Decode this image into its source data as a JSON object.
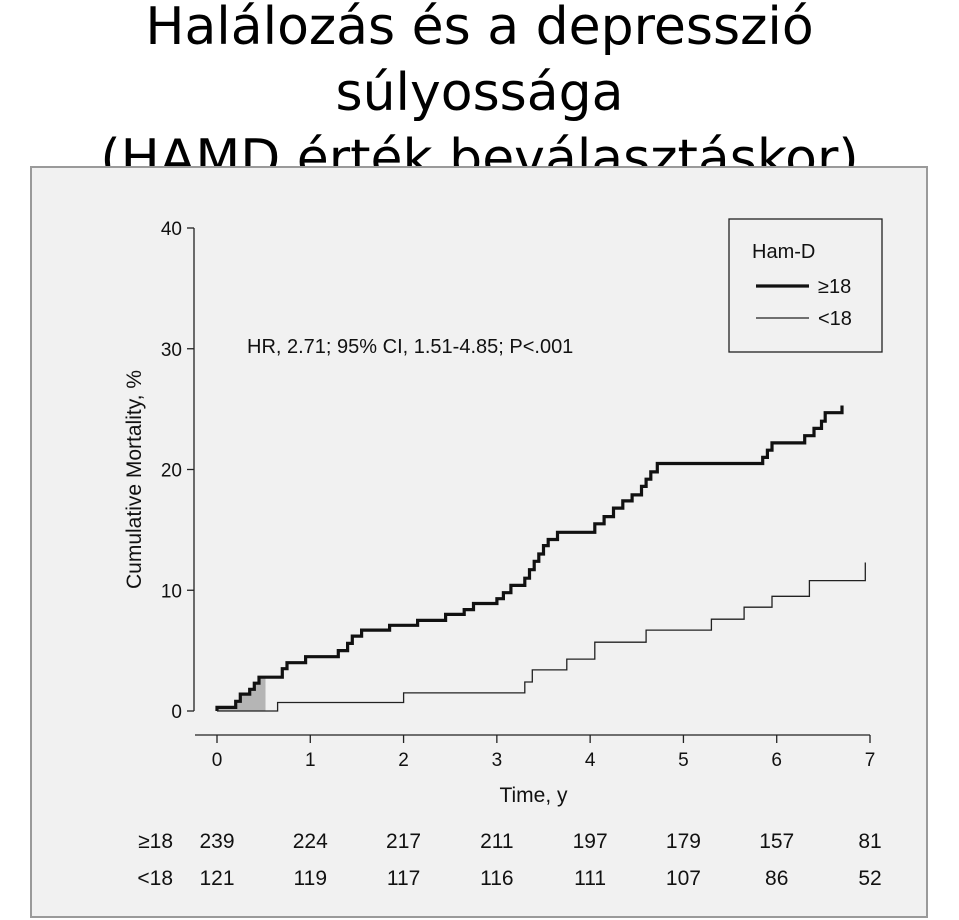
{
  "slide": {
    "title_line1": "Halálozás és a depresszió súlyossága",
    "title_line2": "(HAMD érték beválasztáskor)"
  },
  "chart_data": {
    "type": "line",
    "step": true,
    "xlabel": "Time, y",
    "ylabel": "Cumulative Mortality, %",
    "xlim": [
      0,
      7
    ],
    "ylim": [
      0,
      40
    ],
    "x_ticks": [
      "0",
      "1",
      "2",
      "3",
      "4",
      "5",
      "6",
      "7"
    ],
    "y_ticks": [
      "0",
      "10",
      "20",
      "30",
      "40"
    ],
    "grid": false,
    "legend_title": "Ham-D",
    "legend_position": "top-right",
    "annotation": "HR, 2.71; 95% CI, 1.51-4.85; P<.001",
    "series": [
      {
        "name": "≥18",
        "style": "thick",
        "color": "#111111",
        "points": [
          [
            0,
            0
          ],
          [
            0,
            0.3
          ],
          [
            0.2,
            0.3
          ],
          [
            0.2,
            0.8
          ],
          [
            0.25,
            0.8
          ],
          [
            0.25,
            1.4
          ],
          [
            0.35,
            1.4
          ],
          [
            0.35,
            1.8
          ],
          [
            0.4,
            1.8
          ],
          [
            0.4,
            2.3
          ],
          [
            0.45,
            2.3
          ],
          [
            0.45,
            2.8
          ],
          [
            0.7,
            2.8
          ],
          [
            0.7,
            3.5
          ],
          [
            0.75,
            3.5
          ],
          [
            0.75,
            4.0
          ],
          [
            0.95,
            4.0
          ],
          [
            0.95,
            4.5
          ],
          [
            1.3,
            4.5
          ],
          [
            1.3,
            5.0
          ],
          [
            1.4,
            5.0
          ],
          [
            1.4,
            5.6
          ],
          [
            1.45,
            5.6
          ],
          [
            1.45,
            6.2
          ],
          [
            1.55,
            6.2
          ],
          [
            1.55,
            6.7
          ],
          [
            1.85,
            6.7
          ],
          [
            1.85,
            7.1
          ],
          [
            2.15,
            7.1
          ],
          [
            2.15,
            7.5
          ],
          [
            2.45,
            7.5
          ],
          [
            2.45,
            8.0
          ],
          [
            2.65,
            8.0
          ],
          [
            2.65,
            8.4
          ],
          [
            2.75,
            8.4
          ],
          [
            2.75,
            8.9
          ],
          [
            3.0,
            8.9
          ],
          [
            3.0,
            9.3
          ],
          [
            3.07,
            9.3
          ],
          [
            3.07,
            9.8
          ],
          [
            3.15,
            9.8
          ],
          [
            3.15,
            10.4
          ],
          [
            3.3,
            10.4
          ],
          [
            3.3,
            11.0
          ],
          [
            3.35,
            11.0
          ],
          [
            3.35,
            11.7
          ],
          [
            3.4,
            11.7
          ],
          [
            3.4,
            12.4
          ],
          [
            3.45,
            12.4
          ],
          [
            3.45,
            13.0
          ],
          [
            3.5,
            13.0
          ],
          [
            3.5,
            13.7
          ],
          [
            3.55,
            13.7
          ],
          [
            3.55,
            14.2
          ],
          [
            3.65,
            14.2
          ],
          [
            3.65,
            14.8
          ],
          [
            4.05,
            14.8
          ],
          [
            4.05,
            15.5
          ],
          [
            4.15,
            15.5
          ],
          [
            4.15,
            16.1
          ],
          [
            4.25,
            16.1
          ],
          [
            4.25,
            16.8
          ],
          [
            4.35,
            16.8
          ],
          [
            4.35,
            17.4
          ],
          [
            4.45,
            17.4
          ],
          [
            4.45,
            17.9
          ],
          [
            4.55,
            17.9
          ],
          [
            4.55,
            18.6
          ],
          [
            4.6,
            18.6
          ],
          [
            4.6,
            19.2
          ],
          [
            4.65,
            19.2
          ],
          [
            4.65,
            19.8
          ],
          [
            4.72,
            19.8
          ],
          [
            4.72,
            20.5
          ],
          [
            5.85,
            20.5
          ],
          [
            5.85,
            21.0
          ],
          [
            5.9,
            21.0
          ],
          [
            5.9,
            21.6
          ],
          [
            5.95,
            21.6
          ],
          [
            5.95,
            22.2
          ],
          [
            6.3,
            22.2
          ],
          [
            6.3,
            22.8
          ],
          [
            6.4,
            22.8
          ],
          [
            6.4,
            23.4
          ],
          [
            6.48,
            23.4
          ],
          [
            6.48,
            24.0
          ],
          [
            6.52,
            24.0
          ],
          [
            6.52,
            24.7
          ],
          [
            6.7,
            24.7
          ],
          [
            6.7,
            25.3
          ]
        ]
      },
      {
        "name": "<18",
        "style": "thin",
        "color": "#222222",
        "points": [
          [
            0,
            0
          ],
          [
            0.65,
            0
          ],
          [
            0.65,
            0.7
          ],
          [
            2.0,
            0.7
          ],
          [
            2.0,
            1.5
          ],
          [
            3.3,
            1.5
          ],
          [
            3.3,
            2.4
          ],
          [
            3.38,
            2.4
          ],
          [
            3.38,
            3.4
          ],
          [
            3.75,
            3.4
          ],
          [
            3.75,
            4.3
          ],
          [
            4.05,
            4.3
          ],
          [
            4.05,
            5.7
          ],
          [
            4.6,
            5.7
          ],
          [
            4.6,
            6.7
          ],
          [
            5.3,
            6.7
          ],
          [
            5.3,
            7.6
          ],
          [
            5.65,
            7.6
          ],
          [
            5.65,
            8.6
          ],
          [
            5.95,
            8.6
          ],
          [
            5.95,
            9.5
          ],
          [
            6.35,
            9.5
          ],
          [
            6.35,
            10.8
          ],
          [
            6.95,
            10.8
          ],
          [
            6.95,
            12.3
          ]
        ]
      }
    ],
    "shaded_region": {
      "x": [
        0,
        0.52
      ],
      "color": "#b5b5b5"
    },
    "risk_table": {
      "rows": [
        {
          "label": "≥18",
          "values": [
            "239",
            "224",
            "217",
            "211",
            "197",
            "179",
            "157",
            "81"
          ]
        },
        {
          "label": "<18",
          "values": [
            "121",
            "119",
            "117",
            "116",
            "111",
            "107",
            "86",
            "52"
          ]
        }
      ]
    }
  }
}
